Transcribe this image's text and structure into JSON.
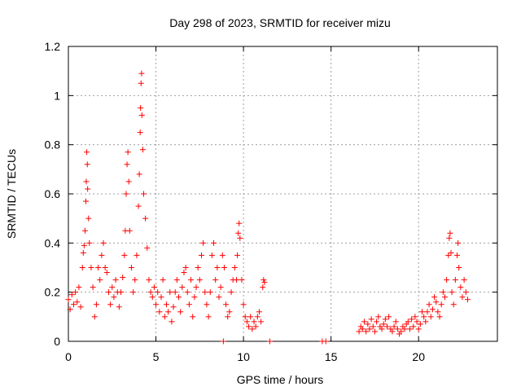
{
  "chart_data": {
    "type": "scatter",
    "title": "Day 298 of 2023, SRMTID for receiver mizu",
    "xlabel": "GPS time / hours",
    "ylabel": "SRMTID / TECUs",
    "xlim": [
      0,
      24.5
    ],
    "ylim": [
      0,
      1.2
    ],
    "xticks": [
      0,
      5,
      10,
      15,
      20
    ],
    "xtick_labels": [
      "0",
      "5",
      "10",
      "15",
      "20"
    ],
    "yticks": [
      0,
      0.2,
      0.4,
      0.6,
      0.8,
      1,
      1.2
    ],
    "ytick_labels": [
      "0",
      "0.2",
      "0.4",
      "0.6",
      "0.8",
      "1",
      "1.2"
    ],
    "grid": true,
    "marker": "+",
    "color": "#ff0000",
    "series": [
      {
        "name": "SRMTID",
        "points": [
          [
            0.0,
            0.17
          ],
          [
            0.1,
            0.13
          ],
          [
            0.2,
            0.19
          ],
          [
            0.3,
            0.15
          ],
          [
            0.4,
            0.2
          ],
          [
            0.5,
            0.16
          ],
          [
            0.6,
            0.22
          ],
          [
            0.7,
            0.14
          ],
          [
            0.8,
            0.3
          ],
          [
            0.85,
            0.36
          ],
          [
            0.9,
            0.39
          ],
          [
            0.95,
            0.45
          ],
          [
            1.0,
            0.57
          ],
          [
            1.02,
            0.65
          ],
          [
            1.05,
            0.77
          ],
          [
            1.08,
            0.72
          ],
          [
            1.1,
            0.62
          ],
          [
            1.15,
            0.5
          ],
          [
            1.2,
            0.4
          ],
          [
            1.3,
            0.3
          ],
          [
            1.4,
            0.22
          ],
          [
            1.5,
            0.1
          ],
          [
            1.6,
            0.15
          ],
          [
            1.7,
            0.3
          ],
          [
            1.8,
            0.25
          ],
          [
            1.9,
            0.35
          ],
          [
            2.0,
            0.4
          ],
          [
            2.1,
            0.3
          ],
          [
            2.2,
            0.28
          ],
          [
            2.3,
            0.2
          ],
          [
            2.4,
            0.15
          ],
          [
            2.5,
            0.22
          ],
          [
            2.6,
            0.18
          ],
          [
            2.7,
            0.25
          ],
          [
            2.8,
            0.2
          ],
          [
            2.9,
            0.14
          ],
          [
            3.0,
            0.2
          ],
          [
            3.1,
            0.26
          ],
          [
            3.2,
            0.35
          ],
          [
            3.25,
            0.45
          ],
          [
            3.3,
            0.6
          ],
          [
            3.35,
            0.72
          ],
          [
            3.4,
            0.77
          ],
          [
            3.45,
            0.65
          ],
          [
            3.5,
            0.45
          ],
          [
            3.6,
            0.3
          ],
          [
            3.7,
            0.2
          ],
          [
            3.8,
            0.25
          ],
          [
            3.9,
            0.35
          ],
          [
            4.0,
            0.55
          ],
          [
            4.05,
            0.68
          ],
          [
            4.1,
            0.85
          ],
          [
            4.12,
            0.95
          ],
          [
            4.15,
            1.05
          ],
          [
            4.18,
            1.09
          ],
          [
            4.2,
            0.92
          ],
          [
            4.25,
            0.78
          ],
          [
            4.3,
            0.6
          ],
          [
            4.4,
            0.5
          ],
          [
            4.5,
            0.38
          ],
          [
            4.6,
            0.25
          ],
          [
            4.7,
            0.2
          ],
          [
            4.8,
            0.18
          ],
          [
            4.9,
            0.22
          ],
          [
            5.0,
            0.15
          ],
          [
            5.1,
            0.2
          ],
          [
            5.2,
            0.12
          ],
          [
            5.3,
            0.18
          ],
          [
            5.4,
            0.25
          ],
          [
            5.5,
            0.1
          ],
          [
            5.6,
            0.15
          ],
          [
            5.7,
            0.12
          ],
          [
            5.8,
            0.2
          ],
          [
            5.9,
            0.08
          ],
          [
            6.0,
            0.14
          ],
          [
            6.1,
            0.2
          ],
          [
            6.2,
            0.25
          ],
          [
            6.3,
            0.18
          ],
          [
            6.4,
            0.12
          ],
          [
            6.5,
            0.22
          ],
          [
            6.6,
            0.28
          ],
          [
            6.7,
            0.3
          ],
          [
            6.8,
            0.2
          ],
          [
            6.9,
            0.15
          ],
          [
            7.0,
            0.25
          ],
          [
            7.1,
            0.1
          ],
          [
            7.2,
            0.18
          ],
          [
            7.3,
            0.22
          ],
          [
            7.4,
            0.3
          ],
          [
            7.5,
            0.25
          ],
          [
            7.6,
            0.35
          ],
          [
            7.7,
            0.4
          ],
          [
            7.8,
            0.2
          ],
          [
            7.9,
            0.15
          ],
          [
            8.0,
            0.1
          ],
          [
            8.1,
            0.2
          ],
          [
            8.2,
            0.35
          ],
          [
            8.3,
            0.4
          ],
          [
            8.4,
            0.25
          ],
          [
            8.5,
            0.3
          ],
          [
            8.6,
            0.18
          ],
          [
            8.7,
            0.22
          ],
          [
            8.8,
            0.35
          ],
          [
            8.85,
            0.0
          ],
          [
            8.9,
            0.3
          ],
          [
            9.0,
            0.15
          ],
          [
            9.1,
            0.1
          ],
          [
            9.2,
            0.12
          ],
          [
            9.3,
            0.2
          ],
          [
            9.4,
            0.25
          ],
          [
            9.5,
            0.3
          ],
          [
            9.6,
            0.25
          ],
          [
            9.65,
            0.35
          ],
          [
            9.7,
            0.44
          ],
          [
            9.75,
            0.48
          ],
          [
            9.8,
            0.42
          ],
          [
            9.9,
            0.25
          ],
          [
            10.0,
            0.15
          ],
          [
            10.1,
            0.1
          ],
          [
            10.2,
            0.08
          ],
          [
            10.3,
            0.06
          ],
          [
            10.4,
            0.1
          ],
          [
            10.5,
            0.05
          ],
          [
            10.6,
            0.08
          ],
          [
            10.7,
            0.06
          ],
          [
            10.8,
            0.1
          ],
          [
            10.9,
            0.12
          ],
          [
            11.0,
            0.08
          ],
          [
            11.1,
            0.22
          ],
          [
            11.15,
            0.25
          ],
          [
            11.2,
            0.24
          ],
          [
            11.5,
            0.0
          ],
          [
            14.5,
            0.0
          ],
          [
            14.7,
            0.0
          ],
          [
            16.6,
            0.04
          ],
          [
            16.7,
            0.06
          ],
          [
            16.8,
            0.05
          ],
          [
            16.9,
            0.08
          ],
          [
            17.0,
            0.04
          ],
          [
            17.1,
            0.07
          ],
          [
            17.2,
            0.05
          ],
          [
            17.3,
            0.09
          ],
          [
            17.4,
            0.06
          ],
          [
            17.5,
            0.04
          ],
          [
            17.6,
            0.08
          ],
          [
            17.7,
            0.1
          ],
          [
            17.8,
            0.06
          ],
          [
            17.9,
            0.05
          ],
          [
            18.0,
            0.07
          ],
          [
            18.1,
            0.09
          ],
          [
            18.2,
            0.06
          ],
          [
            18.3,
            0.1
          ],
          [
            18.4,
            0.05
          ],
          [
            18.5,
            0.04
          ],
          [
            18.6,
            0.06
          ],
          [
            18.7,
            0.08
          ],
          [
            18.8,
            0.05
          ],
          [
            18.9,
            0.03
          ],
          [
            19.0,
            0.04
          ],
          [
            19.1,
            0.06
          ],
          [
            19.2,
            0.05
          ],
          [
            19.3,
            0.07
          ],
          [
            19.4,
            0.08
          ],
          [
            19.5,
            0.05
          ],
          [
            19.6,
            0.09
          ],
          [
            19.7,
            0.06
          ],
          [
            19.8,
            0.1
          ],
          [
            19.9,
            0.08
          ],
          [
            20.0,
            0.05
          ],
          [
            20.1,
            0.07
          ],
          [
            20.2,
            0.12
          ],
          [
            20.3,
            0.1
          ],
          [
            20.4,
            0.08
          ],
          [
            20.5,
            0.12
          ],
          [
            20.6,
            0.15
          ],
          [
            20.7,
            0.1
          ],
          [
            20.8,
            0.13
          ],
          [
            20.9,
            0.18
          ],
          [
            21.0,
            0.16
          ],
          [
            21.1,
            0.12
          ],
          [
            21.2,
            0.1
          ],
          [
            21.3,
            0.15
          ],
          [
            21.4,
            0.2
          ],
          [
            21.5,
            0.18
          ],
          [
            21.6,
            0.25
          ],
          [
            21.7,
            0.35
          ],
          [
            21.75,
            0.42
          ],
          [
            21.8,
            0.44
          ],
          [
            21.85,
            0.36
          ],
          [
            21.9,
            0.2
          ],
          [
            22.0,
            0.15
          ],
          [
            22.1,
            0.25
          ],
          [
            22.2,
            0.35
          ],
          [
            22.25,
            0.4
          ],
          [
            22.3,
            0.3
          ],
          [
            22.4,
            0.22
          ],
          [
            22.5,
            0.18
          ],
          [
            22.6,
            0.25
          ],
          [
            22.7,
            0.2
          ],
          [
            22.8,
            0.17
          ]
        ]
      }
    ]
  }
}
